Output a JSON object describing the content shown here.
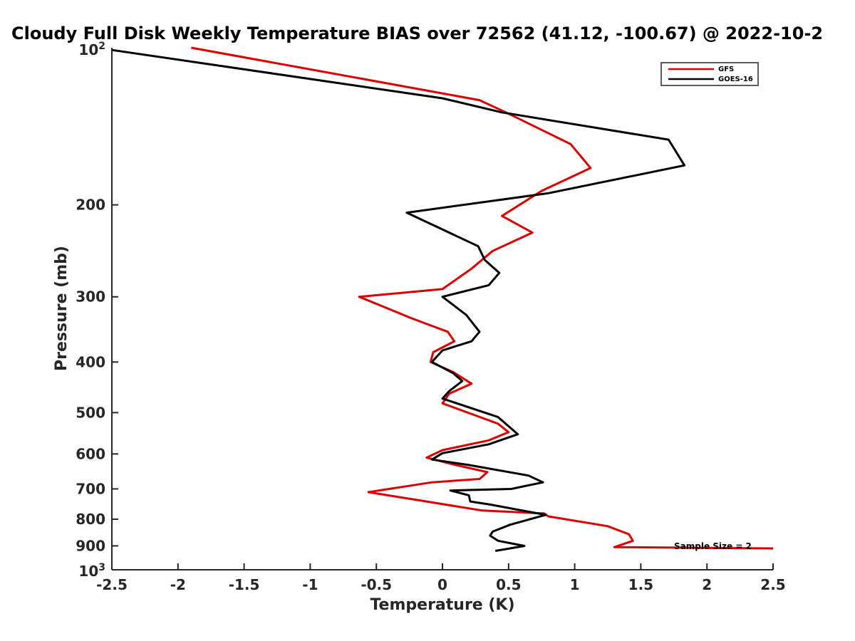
{
  "chart_data": {
    "type": "line",
    "title": "Cloudy Full Disk Weekly Temperature BIAS over 72562 (41.12, -100.67) @ 2022-10-2",
    "xlabel": "Temperature (K)",
    "ylabel": "Pressure (mb)",
    "xlim": [
      -2.5,
      2.5
    ],
    "ylim": [
      100,
      1000
    ],
    "y_scale": "log",
    "y_reversed": true,
    "x_ticks": [
      "-2.5",
      "-2",
      "-1.5",
      "-1",
      "-0.5",
      "0",
      "0.5",
      "1",
      "1.5",
      "2",
      "2.5"
    ],
    "x_tick_values": [
      -2.5,
      -2,
      -1.5,
      -1,
      -0.5,
      0,
      0.5,
      1,
      1.5,
      2,
      2.5
    ],
    "y_tick_values": [
      200,
      300,
      400,
      500,
      600,
      700,
      800,
      900
    ],
    "y_ticks": [
      "200",
      "300",
      "400",
      "500",
      "600",
      "700",
      "800",
      "900"
    ],
    "y_top_label": {
      "base": "10",
      "exp": "2"
    },
    "y_bottom_label": {
      "base": "10",
      "exp": "3"
    },
    "grid": false,
    "legend_position": "top-right",
    "annotation": "Sample Size = 2",
    "series": [
      {
        "name": "GFS",
        "color": "#e00000",
        "x": [
          -1.9,
          0.28,
          0.48,
          0.97,
          1.12,
          0.75,
          0.45,
          0.68,
          0.38,
          0.22,
          0.0,
          -0.63,
          -0.23,
          0.04,
          0.09,
          -0.07,
          -0.09,
          0.08,
          0.22,
          0.05,
          0.0,
          0.42,
          0.5,
          0.35,
          0.0,
          -0.12,
          0.1,
          0.34,
          0.28,
          -0.08,
          -0.56,
          -0.12,
          0.3,
          0.77,
          0.8,
          1.25,
          1.41,
          1.44,
          1.3,
          2.5
        ],
        "y": [
          100,
          126,
          133,
          153,
          170,
          188,
          210,
          226,
          245,
          265,
          290,
          300,
          330,
          350,
          365,
          383,
          400,
          418,
          440,
          460,
          480,
          525,
          545,
          565,
          590,
          610,
          630,
          650,
          670,
          680,
          710,
          740,
          770,
          780,
          790,
          825,
          855,
          880,
          905,
          910
        ]
      },
      {
        "name": "GOES-16",
        "color": "#000000",
        "x": [
          -2.5,
          0.0,
          0.45,
          1.71,
          1.83,
          0.8,
          -0.27,
          0.27,
          0.32,
          0.43,
          0.35,
          0.0,
          0.18,
          0.28,
          0.22,
          0.0,
          -0.08,
          0.08,
          0.15,
          0.05,
          0.0,
          0.42,
          0.57,
          0.35,
          0.0,
          -0.08,
          0.2,
          0.65,
          0.76,
          0.52,
          0.06,
          0.2,
          0.21,
          0.36,
          0.78,
          0.51,
          0.38,
          0.36,
          0.42,
          0.62,
          0.4
        ],
        "y": [
          101,
          125,
          133,
          150,
          168,
          190,
          207,
          240,
          255,
          270,
          285,
          300,
          325,
          350,
          365,
          380,
          400,
          420,
          435,
          455,
          470,
          510,
          550,
          575,
          598,
          615,
          630,
          660,
          680,
          700,
          705,
          720,
          740,
          750,
          785,
          820,
          845,
          860,
          880,
          900,
          920
        ]
      }
    ]
  }
}
